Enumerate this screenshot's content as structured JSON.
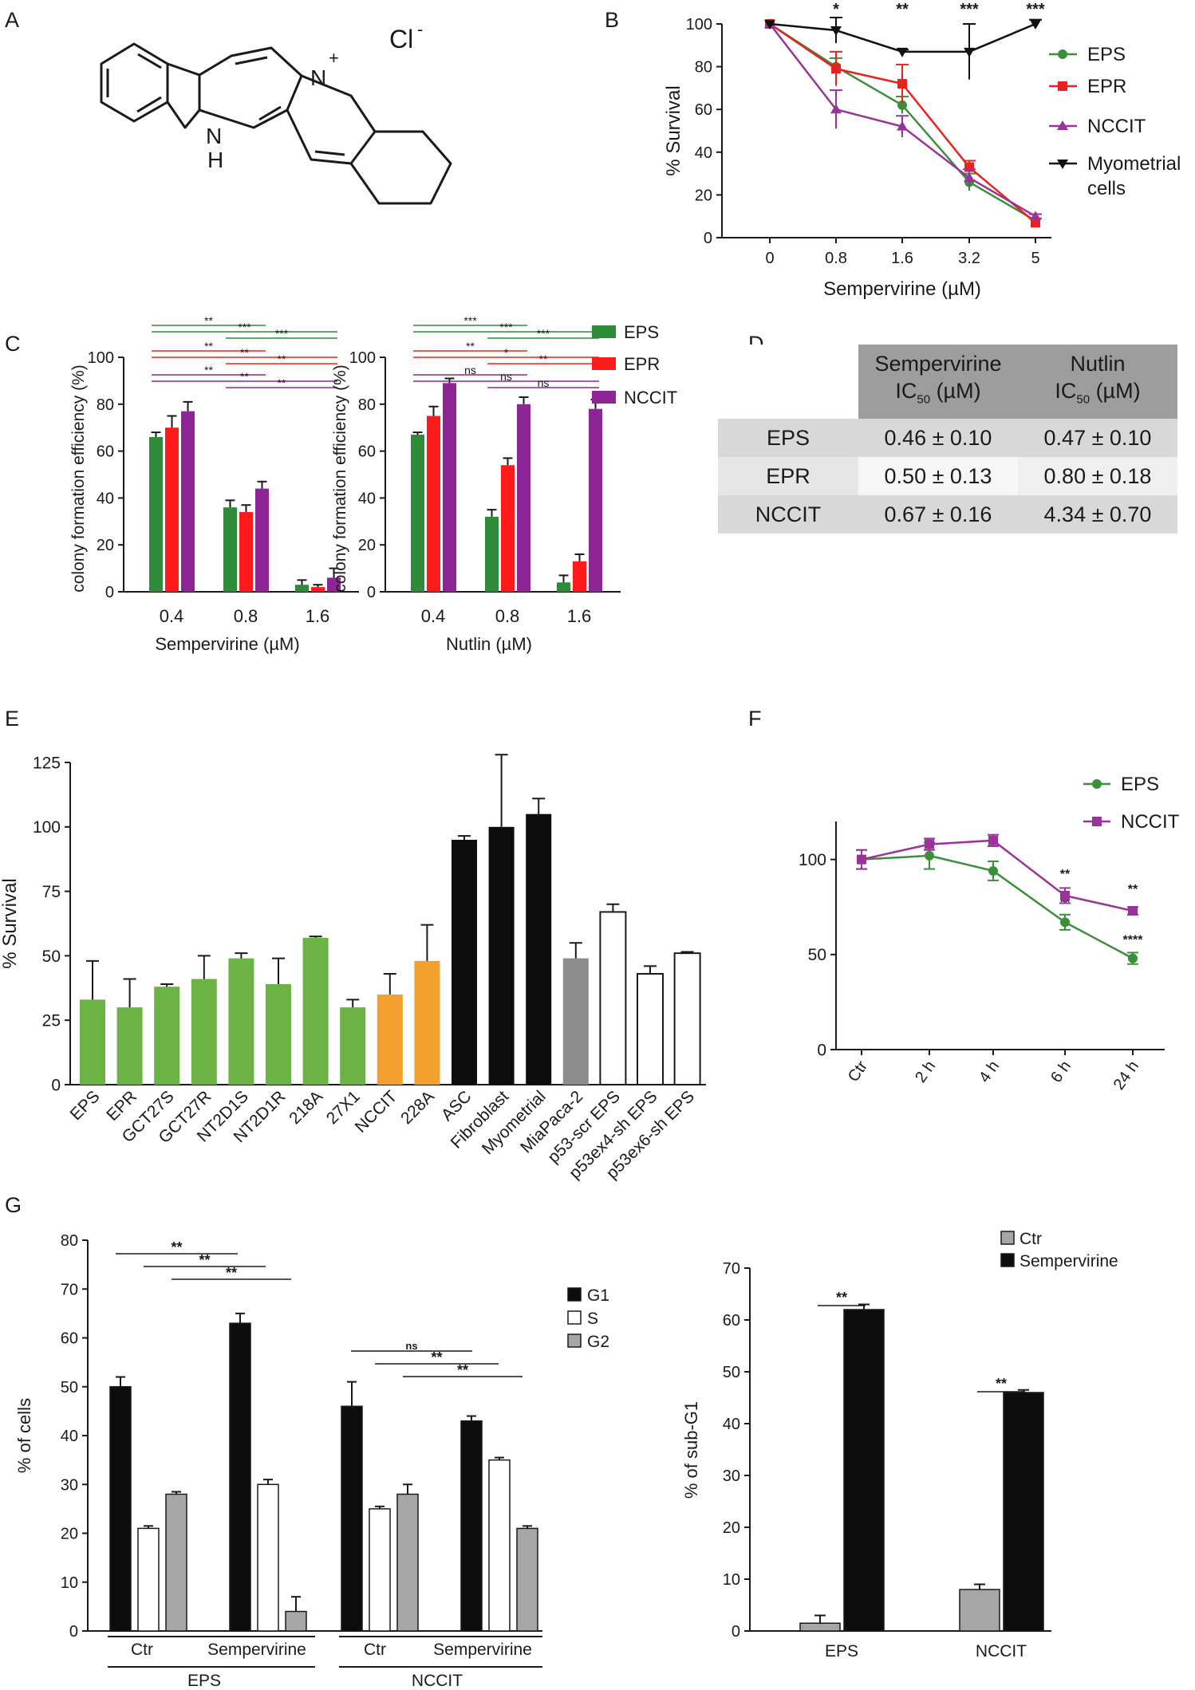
{
  "panel_labels": {
    "a": "A",
    "b": "B",
    "c": "C",
    "d": "D",
    "e": "E",
    "f": "F",
    "g": "G"
  },
  "molecule": {
    "counterion": "Cl",
    "counterion_charge": "-",
    "cation_charge": "+",
    "nh": [
      "N",
      "H"
    ],
    "n_plus": "N"
  },
  "table": {
    "headers": [
      {
        "line1": "Sempervirine",
        "ic": "IC",
        "sub": "50",
        "unit": " (µM)"
      },
      {
        "line1": "Nutlin",
        "ic": "IC",
        "sub": "50",
        "unit": " (µM)"
      }
    ],
    "rows": [
      {
        "name": "EPS",
        "semp": "0.46 ± 0.10",
        "nutlin": "0.47 ± 0.10"
      },
      {
        "name": "EPR",
        "semp": "0.50 ± 0.13",
        "nutlin": "0.80 ± 0.18"
      },
      {
        "name": "NCCIT",
        "semp": "0.67 ± 0.16",
        "nutlin": "4.34 ± 0.70"
      }
    ]
  },
  "chart_data": [
    {
      "id": "B",
      "type": "line",
      "title": "",
      "xlabel": "Sempervirine (µM)",
      "ylabel": "% Survival",
      "x": [
        "0",
        "0.8",
        "1.6",
        "3.2",
        "5"
      ],
      "ylim": [
        0,
        100
      ],
      "yticks": [
        "0",
        "20",
        "40",
        "60",
        "80",
        "100"
      ],
      "legend": [
        "EPS",
        "EPR",
        "NCCIT",
        "Myometrial",
        "cells"
      ],
      "sig": [
        "",
        "*",
        "**",
        "***",
        "***"
      ],
      "series": [
        {
          "name": "EPS",
          "color": "#3a8f3a",
          "values": [
            100,
            80,
            62,
            26,
            8
          ],
          "err": [
            0,
            4,
            4,
            4,
            1
          ]
        },
        {
          "name": "EPR",
          "color": "#e8231f",
          "values": [
            100,
            79,
            72,
            33,
            7
          ],
          "err": [
            0,
            8,
            9,
            3,
            2
          ]
        },
        {
          "name": "NCCIT",
          "color": "#993399",
          "values": [
            100,
            60,
            52,
            28,
            10
          ],
          "err": [
            0,
            9,
            5,
            4,
            1
          ]
        },
        {
          "name": "Myometrial cells",
          "color": "#111111",
          "values": [
            100,
            97,
            87,
            87,
            100
          ],
          "err": [
            0,
            6,
            1,
            13,
            2
          ]
        }
      ]
    },
    {
      "id": "C1",
      "type": "bar",
      "xlabel": "Sempervirine (µM)",
      "ylabel": "colony formation efficiency (%)",
      "categories": [
        "0.4",
        "0.8",
        "1.6"
      ],
      "ylim": [
        0,
        100
      ],
      "yticks": [
        "0",
        "20",
        "40",
        "60",
        "80",
        "100"
      ],
      "legend": [
        "EPS",
        "EPR",
        "NCCIT"
      ],
      "series": [
        {
          "name": "EPS",
          "color": "#2e8b3a",
          "values": [
            66,
            36,
            3
          ],
          "err": [
            2,
            3,
            2
          ]
        },
        {
          "name": "EPR",
          "color": "#ff1a1a",
          "values": [
            70,
            34,
            2
          ],
          "err": [
            5,
            3,
            1
          ]
        },
        {
          "name": "NCCIT",
          "color": "#8e2597",
          "values": [
            77,
            44,
            6
          ],
          "err": [
            4,
            3,
            4
          ]
        }
      ],
      "sig": [
        "**",
        "***",
        "***",
        "**",
        "**",
        "**",
        "**",
        "**",
        "**"
      ]
    },
    {
      "id": "C2",
      "type": "bar",
      "xlabel": "Nutlin (µM)",
      "ylabel": "colony formation efficiency (%)",
      "categories": [
        "0.4",
        "0.8",
        "1.6"
      ],
      "ylim": [
        0,
        100
      ],
      "yticks": [
        "0",
        "20",
        "40",
        "60",
        "80",
        "100"
      ],
      "series": [
        {
          "name": "EPS",
          "color": "#2e8b3a",
          "values": [
            67,
            32,
            4
          ],
          "err": [
            1,
            3,
            3
          ]
        },
        {
          "name": "EPR",
          "color": "#ff1a1a",
          "values": [
            75,
            54,
            13
          ],
          "err": [
            4,
            3,
            3
          ]
        },
        {
          "name": "NCCIT",
          "color": "#8e2597",
          "values": [
            89,
            80,
            78
          ],
          "err": [
            2,
            3,
            4
          ]
        }
      ],
      "sig": [
        "***",
        "***",
        "***",
        "**",
        "*",
        "**",
        "ns",
        "ns",
        "ns"
      ]
    },
    {
      "id": "E",
      "type": "bar",
      "ylabel": "% Survival",
      "ylim": [
        0,
        125
      ],
      "yticks": [
        "0",
        "25",
        "50",
        "75",
        "100",
        "125"
      ],
      "categories": [
        "EPS",
        "EPR",
        "GCT27S",
        "GCT27R",
        "NT2D1S",
        "NT2D1R",
        "218A",
        "27X1",
        "NCCIT",
        "228A",
        "ASC",
        "Fibroblast",
        "Myometrial",
        "MiaPaca-2",
        "p53-scr EPS",
        "p53ex4-sh EPS",
        "p53ex6-sh EPS"
      ],
      "values": [
        33,
        30,
        38,
        41,
        49,
        39,
        57,
        30,
        35,
        48,
        95,
        100,
        105,
        49,
        67,
        43,
        51
      ],
      "err": [
        15,
        11,
        1,
        9,
        2,
        10,
        0.5,
        3,
        8,
        14,
        1.5,
        28,
        6,
        6,
        3,
        3,
        0.5
      ],
      "colors": [
        "#6bb344",
        "#6bb344",
        "#6bb344",
        "#6bb344",
        "#6bb344",
        "#6bb344",
        "#6bb344",
        "#6bb344",
        "#f2a22c",
        "#f2a22c",
        "#0d0d0d",
        "#0d0d0d",
        "#0d0d0d",
        "#8c8c8c",
        "#ffffff",
        "#ffffff",
        "#ffffff"
      ]
    },
    {
      "id": "F",
      "type": "line",
      "x": [
        "Ctr",
        "2 h",
        "4 h",
        "6 h",
        "24 h"
      ],
      "ylim": [
        0,
        120
      ],
      "yticks": [
        "0",
        "50",
        "100"
      ],
      "legend": [
        "EPS",
        "NCCIT"
      ],
      "series": [
        {
          "name": "EPS",
          "color": "#3a8f3a",
          "values": [
            100,
            102,
            94,
            67,
            48
          ],
          "err": [
            5,
            7,
            5,
            4,
            3
          ],
          "sig": [
            "",
            "",
            "",
            "**",
            "****"
          ]
        },
        {
          "name": "NCCIT",
          "color": "#993399",
          "values": [
            100,
            108,
            110,
            81,
            73
          ],
          "err": [
            5,
            3,
            3,
            4,
            2
          ],
          "sig": [
            "",
            "",
            "",
            "**",
            "**"
          ]
        }
      ]
    },
    {
      "id": "G1",
      "type": "bar",
      "ylabel": "% of cells",
      "ylim": [
        0,
        80
      ],
      "yticks": [
        "0",
        "10",
        "20",
        "30",
        "40",
        "50",
        "60",
        "70",
        "80"
      ],
      "groups": [
        {
          "cell": "EPS",
          "treatment": "Ctr",
          "G1": 50,
          "S": 21,
          "G2": 28,
          "eG1": 2,
          "eS": 0.5,
          "eG2": 0.5
        },
        {
          "cell": "EPS",
          "treatment": "Sempervirine",
          "G1": 63,
          "S": 30,
          "G2": 4,
          "eG1": 2,
          "eS": 1,
          "eG2": 3
        },
        {
          "cell": "NCCIT",
          "treatment": "Ctr",
          "G1": 46,
          "S": 25,
          "G2": 28,
          "eG1": 5,
          "eS": 0.5,
          "eG2": 2
        },
        {
          "cell": "NCCIT",
          "treatment": "Sempervirine",
          "G1": 43,
          "S": 35,
          "G2": 21,
          "eG1": 1,
          "eS": 0.5,
          "eG2": 0.5
        }
      ],
      "series_colors": {
        "G1": "#0d0d0d",
        "S": "#ffffff",
        "G2": "#a6a6a6"
      },
      "legend": [
        "G1",
        "S",
        "G2"
      ],
      "xlabels": {
        "ctr": "Ctr",
        "semp": "Sempervirine",
        "eps": "EPS",
        "nccit": "NCCIT"
      },
      "sig": [
        "**",
        "**",
        "**",
        "ns",
        "**",
        "**"
      ]
    },
    {
      "id": "G2",
      "type": "bar",
      "ylabel": "% of sub-G1",
      "ylim": [
        0,
        70
      ],
      "yticks": [
        "0",
        "10",
        "20",
        "30",
        "40",
        "50",
        "60",
        "70"
      ],
      "categories": [
        "EPS",
        "NCCIT"
      ],
      "legend": [
        "Ctr",
        "Sempervirine"
      ],
      "series": [
        {
          "name": "Ctr",
          "color": "#a6a6a6",
          "values": [
            1.5,
            8
          ],
          "err": [
            1.5,
            1
          ]
        },
        {
          "name": "Sempervirine",
          "color": "#0d0d0d",
          "values": [
            62,
            46
          ],
          "err": [
            1,
            0.5
          ]
        }
      ],
      "sig": [
        "**",
        "**"
      ]
    }
  ]
}
